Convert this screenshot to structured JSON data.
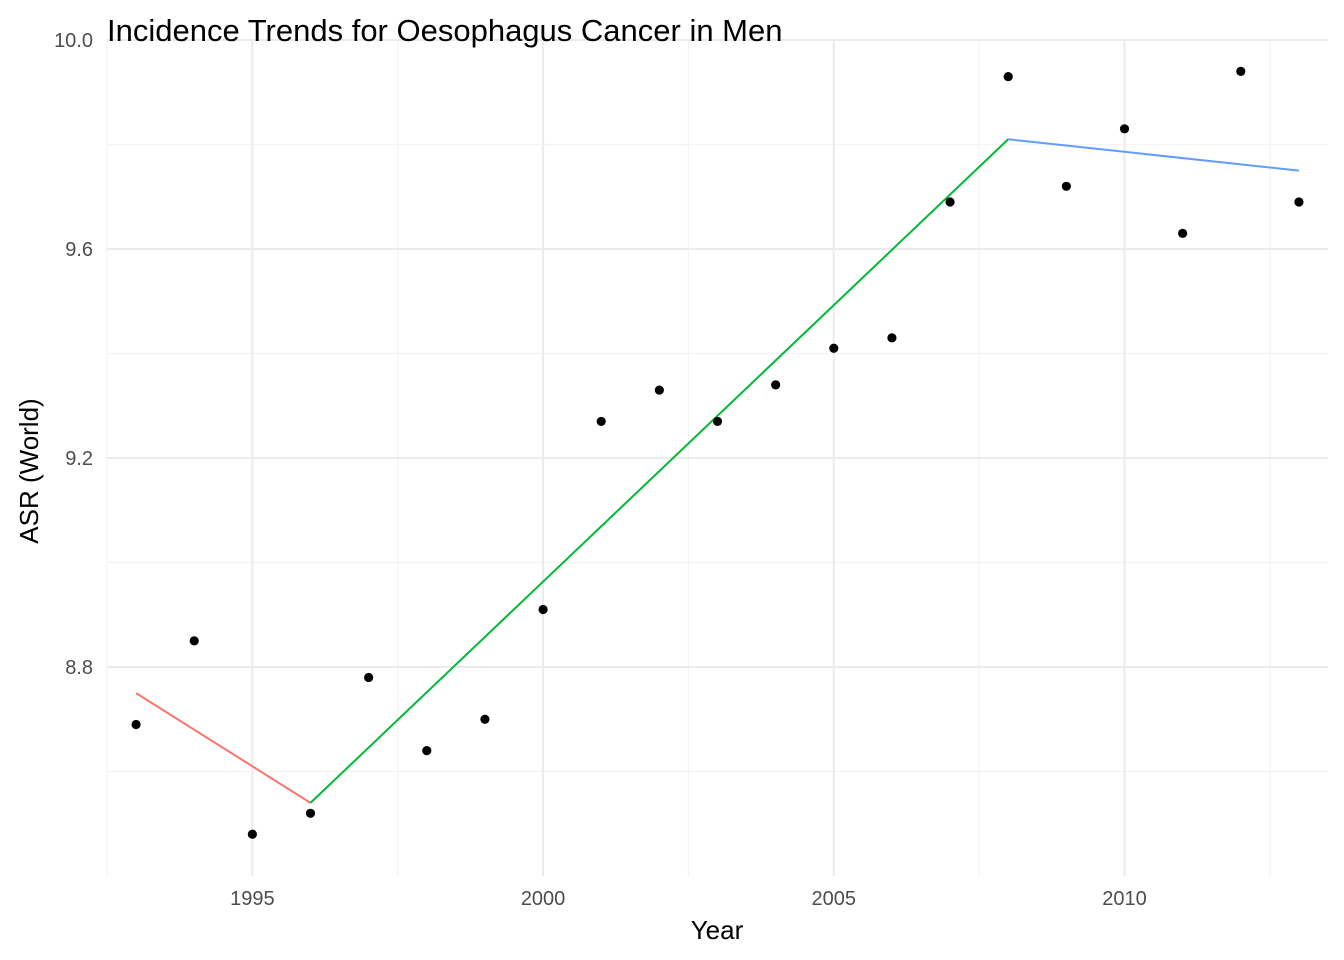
{
  "chart_data": {
    "type": "scatter",
    "title": "Incidence Trends for Oesophagus Cancer in Men",
    "xlabel": "Year",
    "ylabel": "ASR (World)",
    "xlim": [
      1992.5,
      2013.5
    ],
    "ylim": [
      8.4,
      10.0
    ],
    "x_ticks": [
      1995,
      2000,
      2005,
      2010
    ],
    "x_tick_labels": [
      "1995",
      "2000",
      "2005",
      "2010"
    ],
    "y_ticks": [
      8.8,
      9.2,
      9.6,
      10.0
    ],
    "y_tick_labels": [
      "8.8",
      "9.2",
      "9.6",
      "10.0"
    ],
    "grid": true,
    "legend": "none",
    "points": {
      "x": [
        1993,
        1994,
        1995,
        1996,
        1997,
        1998,
        1999,
        2000,
        2001,
        2002,
        2003,
        2004,
        2005,
        2006,
        2007,
        2008,
        2009,
        2010,
        2011,
        2012,
        2013
      ],
      "y": [
        8.69,
        8.85,
        8.48,
        8.52,
        8.78,
        8.64,
        8.7,
        8.91,
        9.27,
        9.33,
        9.27,
        9.34,
        9.41,
        9.43,
        9.69,
        9.93,
        9.72,
        9.83,
        9.63,
        9.94,
        9.69
      ],
      "color": "#000000"
    },
    "series": [
      {
        "type": "line",
        "x": [
          1993,
          1996
        ],
        "y": [
          8.75,
          8.54
        ],
        "color": "#F8766D"
      },
      {
        "type": "line",
        "x": [
          1996,
          2008
        ],
        "y": [
          8.54,
          9.81
        ],
        "color": "#00BA38"
      },
      {
        "type": "line",
        "x": [
          2008,
          2013
        ],
        "y": [
          9.81,
          9.75
        ],
        "color": "#619CFF"
      }
    ]
  }
}
